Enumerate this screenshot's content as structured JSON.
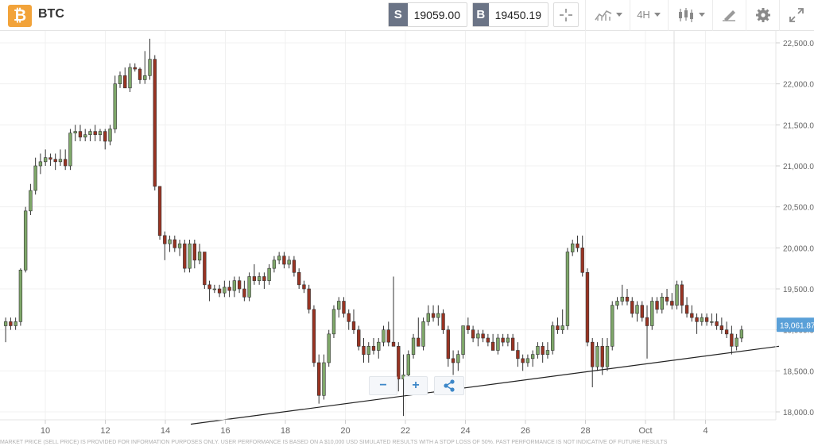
{
  "header": {
    "symbol_icon": "bitcoin-icon",
    "symbol_glyph": "₿",
    "symbol": "BTC",
    "sell_tag": "S",
    "sell_price": "19059.00",
    "buy_tag": "B",
    "buy_price": "19450.19",
    "timeframe": "4H",
    "icons": [
      "crosshair-icon",
      "indicators-icon",
      "candlestick-icon",
      "drawing-tool-icon",
      "gear-icon",
      "fullscreen-icon"
    ]
  },
  "colors": {
    "up": "#7fa86a",
    "down": "#993322",
    "axis_text": "#666666",
    "grid": "#f0f0f0",
    "price_tag": "#5aa0d8",
    "zoom_icon": "#3d87c8"
  },
  "chart_data": {
    "type": "candlestick",
    "x_ticks": [
      "10",
      "12",
      "14",
      "16",
      "18",
      "20",
      "22",
      "24",
      "26",
      "28",
      "Oct",
      "4"
    ],
    "y_ticks": [
      "18,000.00",
      "18,500.00",
      "19,000.00",
      "19,500.00",
      "20,000.00",
      "20,500.00",
      "21,000.00",
      "21,500.00",
      "22,000.00",
      "22,500.00"
    ],
    "ylim": [
      17900,
      22600
    ],
    "current_price_label": "19,061.87",
    "trendline": {
      "start": [
        "Sep 15 00:00",
        17850
      ],
      "end": [
        "Oct 4 12:00",
        18800
      ]
    },
    "candles": [
      {
        "o": 19050,
        "h": 19150,
        "l": 18850,
        "c": 19100
      },
      {
        "o": 19100,
        "h": 19150,
        "l": 19000,
        "c": 19050
      },
      {
        "o": 19050,
        "h": 19150,
        "l": 19000,
        "c": 19100
      },
      {
        "o": 19100,
        "h": 19750,
        "l": 19050,
        "c": 19730
      },
      {
        "o": 19730,
        "h": 20500,
        "l": 19700,
        "c": 20450
      },
      {
        "o": 20450,
        "h": 20780,
        "l": 20400,
        "c": 20700
      },
      {
        "o": 20700,
        "h": 21100,
        "l": 20650,
        "c": 21000
      },
      {
        "o": 21000,
        "h": 21150,
        "l": 20900,
        "c": 21050
      },
      {
        "o": 21050,
        "h": 21200,
        "l": 21000,
        "c": 21100
      },
      {
        "o": 21100,
        "h": 21150,
        "l": 21000,
        "c": 21080
      },
      {
        "o": 21080,
        "h": 21150,
        "l": 20950,
        "c": 21050
      },
      {
        "o": 21050,
        "h": 21200,
        "l": 21000,
        "c": 21080
      },
      {
        "o": 21080,
        "h": 21200,
        "l": 20950,
        "c": 21000
      },
      {
        "o": 21000,
        "h": 21450,
        "l": 20950,
        "c": 21400
      },
      {
        "o": 21400,
        "h": 21500,
        "l": 21300,
        "c": 21420
      },
      {
        "o": 21420,
        "h": 21500,
        "l": 21300,
        "c": 21350
      },
      {
        "o": 21350,
        "h": 21450,
        "l": 21300,
        "c": 21380
      },
      {
        "o": 21380,
        "h": 21450,
        "l": 21300,
        "c": 21420
      },
      {
        "o": 21420,
        "h": 21500,
        "l": 21300,
        "c": 21380
      },
      {
        "o": 21380,
        "h": 21450,
        "l": 21300,
        "c": 21420
      },
      {
        "o": 21420,
        "h": 21450,
        "l": 21200,
        "c": 21300
      },
      {
        "o": 21300,
        "h": 21500,
        "l": 21250,
        "c": 21450
      },
      {
        "o": 21450,
        "h": 22100,
        "l": 21400,
        "c": 22000
      },
      {
        "o": 22000,
        "h": 22150,
        "l": 21950,
        "c": 22100
      },
      {
        "o": 22100,
        "h": 22200,
        "l": 21950,
        "c": 21950
      },
      {
        "o": 21950,
        "h": 22250,
        "l": 21900,
        "c": 22200
      },
      {
        "o": 22200,
        "h": 22250,
        "l": 22150,
        "c": 22180
      },
      {
        "o": 22180,
        "h": 22200,
        "l": 22000,
        "c": 22050
      },
      {
        "o": 22050,
        "h": 22400,
        "l": 22000,
        "c": 22100
      },
      {
        "o": 22100,
        "h": 22550,
        "l": 22050,
        "c": 22300
      },
      {
        "o": 22300,
        "h": 22350,
        "l": 20700,
        "c": 20750
      },
      {
        "o": 20750,
        "h": 20750,
        "l": 20100,
        "c": 20150
      },
      {
        "o": 20150,
        "h": 20200,
        "l": 19850,
        "c": 20050
      },
      {
        "o": 20050,
        "h": 20150,
        "l": 19950,
        "c": 20100
      },
      {
        "o": 20100,
        "h": 20150,
        "l": 19950,
        "c": 20000
      },
      {
        "o": 20000,
        "h": 20100,
        "l": 19900,
        "c": 20050
      },
      {
        "o": 20050,
        "h": 20100,
        "l": 19700,
        "c": 19750
      },
      {
        "o": 19750,
        "h": 20100,
        "l": 19700,
        "c": 20050
      },
      {
        "o": 20050,
        "h": 20100,
        "l": 19750,
        "c": 19850
      },
      {
        "o": 19850,
        "h": 20050,
        "l": 19800,
        "c": 19950
      },
      {
        "o": 19950,
        "h": 19950,
        "l": 19500,
        "c": 19550
      },
      {
        "o": 19550,
        "h": 19600,
        "l": 19350,
        "c": 19500
      },
      {
        "o": 19500,
        "h": 19550,
        "l": 19450,
        "c": 19500
      },
      {
        "o": 19500,
        "h": 19550,
        "l": 19400,
        "c": 19450
      },
      {
        "o": 19450,
        "h": 19600,
        "l": 19400,
        "c": 19520
      },
      {
        "o": 19520,
        "h": 19600,
        "l": 19400,
        "c": 19480
      },
      {
        "o": 19480,
        "h": 19650,
        "l": 19400,
        "c": 19600
      },
      {
        "o": 19600,
        "h": 19650,
        "l": 19450,
        "c": 19500
      },
      {
        "o": 19500,
        "h": 19600,
        "l": 19350,
        "c": 19400
      },
      {
        "o": 19400,
        "h": 19700,
        "l": 19350,
        "c": 19650
      },
      {
        "o": 19650,
        "h": 19800,
        "l": 19550,
        "c": 19600
      },
      {
        "o": 19600,
        "h": 19700,
        "l": 19550,
        "c": 19650
      },
      {
        "o": 19650,
        "h": 19700,
        "l": 19500,
        "c": 19600
      },
      {
        "o": 19600,
        "h": 19800,
        "l": 19550,
        "c": 19750
      },
      {
        "o": 19750,
        "h": 19900,
        "l": 19700,
        "c": 19850
      },
      {
        "o": 19850,
        "h": 19950,
        "l": 19800,
        "c": 19900
      },
      {
        "o": 19900,
        "h": 19950,
        "l": 19750,
        "c": 19800
      },
      {
        "o": 19800,
        "h": 19900,
        "l": 19750,
        "c": 19850
      },
      {
        "o": 19850,
        "h": 19900,
        "l": 19650,
        "c": 19700
      },
      {
        "o": 19700,
        "h": 19750,
        "l": 19500,
        "c": 19550
      },
      {
        "o": 19550,
        "h": 19600,
        "l": 19450,
        "c": 19500
      },
      {
        "o": 19500,
        "h": 19550,
        "l": 19200,
        "c": 19250
      },
      {
        "o": 19250,
        "h": 19300,
        "l": 18550,
        "c": 18600
      },
      {
        "o": 18600,
        "h": 18700,
        "l": 18100,
        "c": 18200
      },
      {
        "o": 18200,
        "h": 18700,
        "l": 18150,
        "c": 18600
      },
      {
        "o": 18600,
        "h": 19000,
        "l": 18550,
        "c": 18950
      },
      {
        "o": 18950,
        "h": 19300,
        "l": 18900,
        "c": 19250
      },
      {
        "o": 19250,
        "h": 19400,
        "l": 19150,
        "c": 19350
      },
      {
        "o": 19350,
        "h": 19400,
        "l": 19150,
        "c": 19200
      },
      {
        "o": 19200,
        "h": 19250,
        "l": 19000,
        "c": 19100
      },
      {
        "o": 19100,
        "h": 19250,
        "l": 18950,
        "c": 19000
      },
      {
        "o": 19000,
        "h": 19050,
        "l": 18750,
        "c": 18800
      },
      {
        "o": 18800,
        "h": 18900,
        "l": 18600,
        "c": 18700
      },
      {
        "o": 18700,
        "h": 18850,
        "l": 18600,
        "c": 18800
      },
      {
        "o": 18800,
        "h": 18900,
        "l": 18700,
        "c": 18750
      },
      {
        "o": 18750,
        "h": 18900,
        "l": 18650,
        "c": 18850
      },
      {
        "o": 18850,
        "h": 19050,
        "l": 18800,
        "c": 19000
      },
      {
        "o": 19000,
        "h": 19100,
        "l": 18800,
        "c": 18850
      },
      {
        "o": 18850,
        "h": 19650,
        "l": 18800,
        "c": 18800
      },
      {
        "o": 18800,
        "h": 18850,
        "l": 18250,
        "c": 18400
      },
      {
        "o": 18400,
        "h": 18700,
        "l": 17950,
        "c": 18450
      },
      {
        "o": 18450,
        "h": 18750,
        "l": 18400,
        "c": 18700
      },
      {
        "o": 18700,
        "h": 18950,
        "l": 18650,
        "c": 18900
      },
      {
        "o": 18900,
        "h": 19150,
        "l": 18800,
        "c": 18800
      },
      {
        "o": 18800,
        "h": 19150,
        "l": 18750,
        "c": 19100
      },
      {
        "o": 19100,
        "h": 19300,
        "l": 19050,
        "c": 19200
      },
      {
        "o": 19200,
        "h": 19300,
        "l": 19100,
        "c": 19150
      },
      {
        "o": 19150,
        "h": 19300,
        "l": 19050,
        "c": 19200
      },
      {
        "o": 19200,
        "h": 19250,
        "l": 18950,
        "c": 19000
      },
      {
        "o": 19000,
        "h": 19050,
        "l": 18550,
        "c": 18650
      },
      {
        "o": 18650,
        "h": 18750,
        "l": 18450,
        "c": 18600
      },
      {
        "o": 18600,
        "h": 18750,
        "l": 18500,
        "c": 18700
      },
      {
        "o": 18700,
        "h": 19050,
        "l": 18650,
        "c": 19050
      },
      {
        "o": 19050,
        "h": 19150,
        "l": 18950,
        "c": 19000
      },
      {
        "o": 19000,
        "h": 19050,
        "l": 18850,
        "c": 18900
      },
      {
        "o": 18900,
        "h": 19000,
        "l": 18800,
        "c": 18950
      },
      {
        "o": 18950,
        "h": 19000,
        "l": 18850,
        "c": 18900
      },
      {
        "o": 18900,
        "h": 18950,
        "l": 18800,
        "c": 18850
      },
      {
        "o": 18850,
        "h": 18950,
        "l": 18750,
        "c": 18750
      },
      {
        "o": 18750,
        "h": 18950,
        "l": 18700,
        "c": 18900
      },
      {
        "o": 18900,
        "h": 18950,
        "l": 18800,
        "c": 18850
      },
      {
        "o": 18850,
        "h": 18950,
        "l": 18800,
        "c": 18900
      },
      {
        "o": 18900,
        "h": 18950,
        "l": 18750,
        "c": 18750
      },
      {
        "o": 18750,
        "h": 18850,
        "l": 18550,
        "c": 18650
      },
      {
        "o": 18650,
        "h": 18700,
        "l": 18500,
        "c": 18600
      },
      {
        "o": 18600,
        "h": 18700,
        "l": 18550,
        "c": 18650
      },
      {
        "o": 18650,
        "h": 18750,
        "l": 18550,
        "c": 18700
      },
      {
        "o": 18700,
        "h": 18850,
        "l": 18650,
        "c": 18800
      },
      {
        "o": 18800,
        "h": 18850,
        "l": 18600,
        "c": 18700
      },
      {
        "o": 18700,
        "h": 18850,
        "l": 18650,
        "c": 18750
      },
      {
        "o": 18750,
        "h": 19100,
        "l": 18700,
        "c": 19050
      },
      {
        "o": 19050,
        "h": 19150,
        "l": 18950,
        "c": 19000
      },
      {
        "o": 19000,
        "h": 19250,
        "l": 18950,
        "c": 19050
      },
      {
        "o": 19050,
        "h": 20000,
        "l": 19000,
        "c": 19950
      },
      {
        "o": 19950,
        "h": 20100,
        "l": 19900,
        "c": 20050
      },
      {
        "o": 20050,
        "h": 20150,
        "l": 19950,
        "c": 20000
      },
      {
        "o": 20000,
        "h": 20150,
        "l": 19650,
        "c": 19700
      },
      {
        "o": 19700,
        "h": 19750,
        "l": 18800,
        "c": 18850
      },
      {
        "o": 18850,
        "h": 18900,
        "l": 18300,
        "c": 18550
      },
      {
        "o": 18550,
        "h": 18850,
        "l": 18500,
        "c": 18800
      },
      {
        "o": 18800,
        "h": 18900,
        "l": 18450,
        "c": 18550
      },
      {
        "o": 18550,
        "h": 18900,
        "l": 18500,
        "c": 18800
      },
      {
        "o": 18800,
        "h": 19350,
        "l": 18750,
        "c": 19300
      },
      {
        "o": 19300,
        "h": 19400,
        "l": 19250,
        "c": 19350
      },
      {
        "o": 19350,
        "h": 19550,
        "l": 19300,
        "c": 19400
      },
      {
        "o": 19400,
        "h": 19500,
        "l": 19300,
        "c": 19350
      },
      {
        "o": 19350,
        "h": 19400,
        "l": 19150,
        "c": 19200
      },
      {
        "o": 19200,
        "h": 19350,
        "l": 19100,
        "c": 19300
      },
      {
        "o": 19300,
        "h": 19350,
        "l": 19100,
        "c": 19150
      },
      {
        "o": 19150,
        "h": 19300,
        "l": 18650,
        "c": 19050
      },
      {
        "o": 19050,
        "h": 19400,
        "l": 19000,
        "c": 19350
      },
      {
        "o": 19350,
        "h": 19400,
        "l": 19200,
        "c": 19250
      },
      {
        "o": 19250,
        "h": 19450,
        "l": 19200,
        "c": 19400
      },
      {
        "o": 19400,
        "h": 19500,
        "l": 19300,
        "c": 19350
      },
      {
        "o": 19350,
        "h": 19450,
        "l": 19250,
        "c": 19300
      },
      {
        "o": 19300,
        "h": 19600,
        "l": 19250,
        "c": 19550
      },
      {
        "o": 19550,
        "h": 19600,
        "l": 19200,
        "c": 19300
      },
      {
        "o": 19300,
        "h": 19400,
        "l": 19150,
        "c": 19200
      },
      {
        "o": 19200,
        "h": 19300,
        "l": 19100,
        "c": 19150
      },
      {
        "o": 19150,
        "h": 19200,
        "l": 18950,
        "c": 19100
      },
      {
        "o": 19100,
        "h": 19200,
        "l": 19050,
        "c": 19150
      },
      {
        "o": 19150,
        "h": 19200,
        "l": 19050,
        "c": 19100
      },
      {
        "o": 19100,
        "h": 19200,
        "l": 19050,
        "c": 19100
      },
      {
        "o": 19100,
        "h": 19200,
        "l": 19000,
        "c": 19050
      },
      {
        "o": 19050,
        "h": 19150,
        "l": 18950,
        "c": 19000
      },
      {
        "o": 19000,
        "h": 19100,
        "l": 18900,
        "c": 18950
      },
      {
        "o": 18950,
        "h": 19050,
        "l": 18700,
        "c": 18800
      },
      {
        "o": 18800,
        "h": 18950,
        "l": 18750,
        "c": 18900
      },
      {
        "o": 18900,
        "h": 19050,
        "l": 18850,
        "c": 19000
      }
    ]
  },
  "zoom": {
    "minus": "−",
    "plus": "+"
  },
  "disclaimer": "MARKET PRICE (SELL PRICE) IS PROVIDED FOR INFORMATION PURPOSES ONLY. USER PERFORMANCE IS BASED ON A $10,000 USD SIMULATED RESULTS WITH A STOP LOSS OF 50%. PAST PERFORMANCE IS NOT INDICATIVE OF FUTURE RESULTS"
}
